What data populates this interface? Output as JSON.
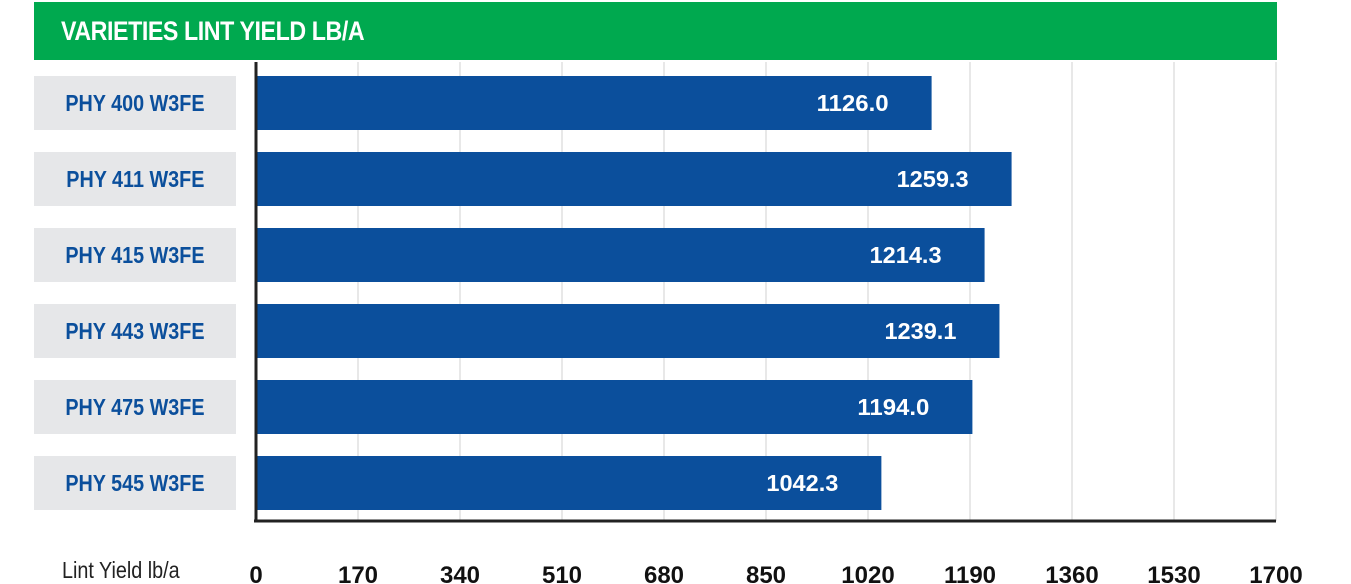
{
  "chart_data": {
    "type": "bar",
    "orientation": "horizontal",
    "title": "VARIETIES LINT YIELD LB/A",
    "xlabel": "Lint Yield lb/a",
    "categories": [
      "PHY 400 W3FE",
      "PHY 411 W3FE",
      "PHY 415 W3FE",
      "PHY 443 W3FE",
      "PHY 475 W3FE",
      "PHY 545 W3FE"
    ],
    "values": [
      1126.0,
      1259.3,
      1214.3,
      1239.1,
      1194.0,
      1042.3
    ],
    "data_labels": [
      "1126.0",
      "1259.3",
      "1214.3",
      "1239.1",
      "1194.0",
      "1042.3"
    ],
    "xlim": [
      0,
      1700
    ],
    "ticks": [
      "0",
      "170",
      "340",
      "510",
      "680",
      "850",
      "1020",
      "1190",
      "1360",
      "1530",
      "1700"
    ],
    "grid": true,
    "colors": {
      "bar": "#0b4f9c",
      "title_band": "#00a94f",
      "label_box": "#e6e7e9",
      "label_text": "#0b4f9c",
      "grid": "#d0d0d0"
    }
  }
}
